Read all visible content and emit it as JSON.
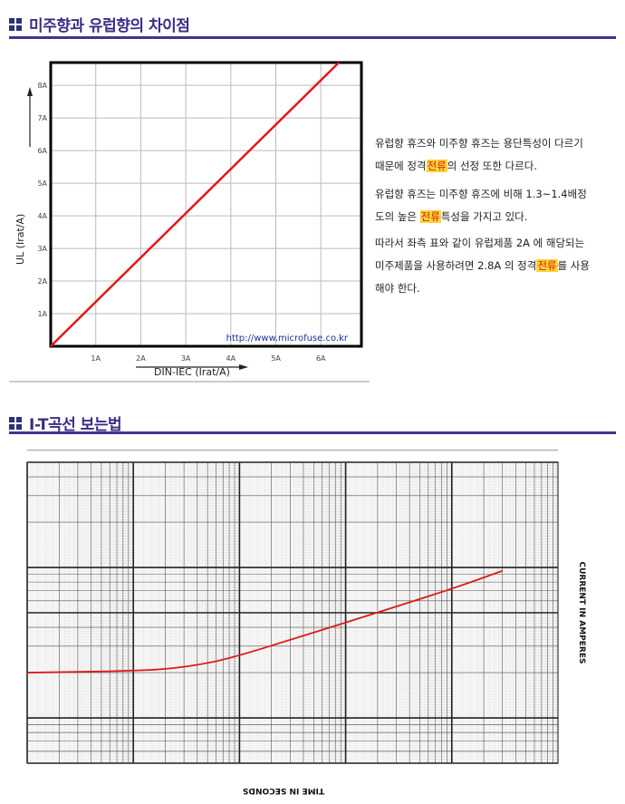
{
  "section1": {
    "title": "미주향과 유럽향의 차이점"
  },
  "section2": {
    "title": "I-T곡선 보는법"
  },
  "text": {
    "p1_a": "유럽향 휴즈와 미주향 휴즈는 용단특성이 다르기",
    "p1_b": "때문에 정격",
    "p1_hl": "전류",
    "p1_c": "의 선정 또한 다르다.",
    "p2_a": "유럽향 휴즈는 미주향 휴즈에 비해 1.3~1.4배정",
    "p2_b": "도의 높은 ",
    "p2_hl": "전류",
    "p2_c": "특성을 가지고 있다.",
    "p3_a": "따라서 좌측 표와 같이 유럽제품 2A 에 해당되는",
    "p3_b": "미주제품을 사용하려면 2.8A 의 정격",
    "p3_hl": "전류",
    "p3_c": "를 사용",
    "p3_d": "해야 한다."
  },
  "chart_data": [
    {
      "type": "line",
      "xlabel": "DIN-IEC (Irat/A)",
      "ylabel": "UL (Irat/A)",
      "x_ticks": [
        "1A",
        "2A",
        "3A",
        "4A",
        "5A",
        "6A"
      ],
      "y_ticks": [
        "1A",
        "2A",
        "3A",
        "4A",
        "5A",
        "6A",
        "7A",
        "8A"
      ],
      "xlim": [
        0,
        6.9
      ],
      "ylim": [
        0,
        8.7
      ],
      "grid": true,
      "annotation": "http://www.microfuse.co.kr",
      "series": [
        {
          "color": "#e01818",
          "x": [
            0,
            6.4
          ],
          "y": [
            0,
            8.7
          ]
        }
      ]
    },
    {
      "type": "line",
      "xlabel": "TIME IN SECONDS",
      "ylabel": "CURRENT IN AMPERES",
      "x_scale": "log",
      "y_scale": "log",
      "grid": true,
      "series": [
        {
          "color": "#e01818",
          "x": [
            0.001,
            0.003,
            0.008,
            0.02,
            0.05,
            0.1,
            0.3,
            1,
            3,
            10,
            30
          ],
          "y": [
            2.0,
            2.02,
            2.05,
            2.1,
            2.3,
            2.6,
            3.3,
            4.3,
            5.5,
            7.2,
            9.5
          ]
        }
      ]
    }
  ]
}
